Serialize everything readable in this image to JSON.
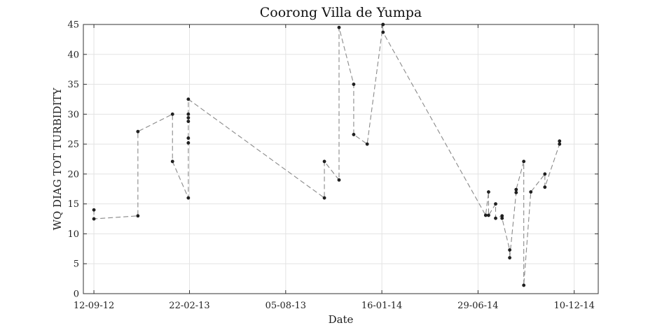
{
  "chart_data": {
    "type": "line",
    "title": "Coorong Villa de Yumpa",
    "xlabel": "Date",
    "ylabel": "WQ DIAG TOT TURBIDITY",
    "x_axis_type": "date",
    "xlim": [
      "2012-08-25",
      "2015-01-20"
    ],
    "ylim": [
      0,
      45
    ],
    "x_ticks": [
      "2012-09-12",
      "2013-02-22",
      "2013-08-05",
      "2014-01-16",
      "2014-06-29",
      "2014-12-10"
    ],
    "x_tick_labels": [
      "12-09-12",
      "22-02-13",
      "05-08-13",
      "16-01-14",
      "29-06-14",
      "10-12-14"
    ],
    "y_ticks": [
      0,
      5,
      10,
      15,
      20,
      25,
      30,
      35,
      40,
      45
    ],
    "y_tick_labels": [
      "0",
      "5",
      "10",
      "15",
      "20",
      "25",
      "30",
      "35",
      "40",
      "45"
    ],
    "grid": true,
    "series": [
      {
        "line_style": "dashed",
        "color": "#8a8a8a",
        "marker_color": "#222222",
        "points": [
          {
            "x": "2012-09-12",
            "y": 14.0
          },
          {
            "x": "2012-09-12",
            "y": 12.5
          },
          {
            "x": "2012-11-26",
            "y": 13.0
          },
          {
            "x": "2012-11-26",
            "y": 27.1
          },
          {
            "x": "2013-01-24",
            "y": 30.0
          },
          {
            "x": "2013-01-24",
            "y": 22.1
          },
          {
            "x": "2013-02-20",
            "y": 16.0
          },
          {
            "x": "2013-02-20",
            "y": 25.2
          },
          {
            "x": "2013-02-20",
            "y": 26.0
          },
          {
            "x": "2013-02-20",
            "y": 28.8
          },
          {
            "x": "2013-02-20",
            "y": 29.4
          },
          {
            "x": "2013-02-20",
            "y": 30.0
          },
          {
            "x": "2013-02-20",
            "y": 32.5
          },
          {
            "x": "2013-10-10",
            "y": 16.0
          },
          {
            "x": "2013-10-10",
            "y": 22.1
          },
          {
            "x": "2013-11-04",
            "y": 19.0
          },
          {
            "x": "2013-11-04",
            "y": 44.5
          },
          {
            "x": "2013-11-29",
            "y": 35.0
          },
          {
            "x": "2013-11-29",
            "y": 26.6
          },
          {
            "x": "2013-12-22",
            "y": 25.0
          },
          {
            "x": "2014-01-18",
            "y": 45.0
          },
          {
            "x": "2014-01-18",
            "y": 43.7
          },
          {
            "x": "2014-07-12",
            "y": 13.1
          },
          {
            "x": "2014-07-17",
            "y": 17.0
          },
          {
            "x": "2014-07-17",
            "y": 13.1
          },
          {
            "x": "2014-07-29",
            "y": 15.0
          },
          {
            "x": "2014-07-29",
            "y": 12.6
          },
          {
            "x": "2014-08-09",
            "y": 13.0
          },
          {
            "x": "2014-08-09",
            "y": 12.6
          },
          {
            "x": "2014-08-22",
            "y": 7.3
          },
          {
            "x": "2014-08-22",
            "y": 6.0
          },
          {
            "x": "2014-09-02",
            "y": 16.9
          },
          {
            "x": "2014-09-02",
            "y": 17.4
          },
          {
            "x": "2014-09-15",
            "y": 22.1
          },
          {
            "x": "2014-09-15",
            "y": 1.4
          },
          {
            "x": "2014-09-27",
            "y": 17.0
          },
          {
            "x": "2014-10-21",
            "y": 20.0
          },
          {
            "x": "2014-10-21",
            "y": 17.8
          },
          {
            "x": "2014-11-15",
            "y": 25.0
          },
          {
            "x": "2014-11-15",
            "y": 25.5
          }
        ]
      }
    ]
  }
}
